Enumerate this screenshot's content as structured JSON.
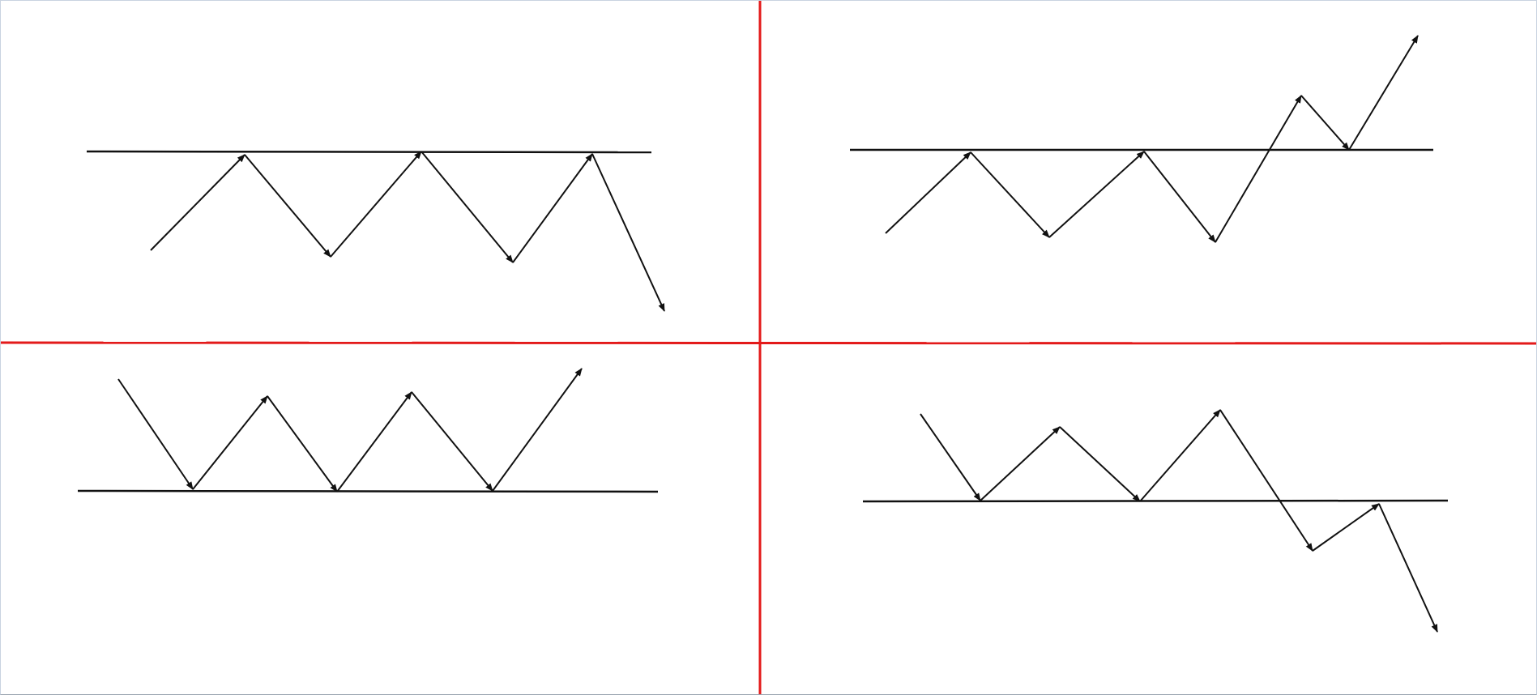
{
  "colors": {
    "background": "#ffffff",
    "divider": "#e31a1a",
    "stroke": "#111111"
  },
  "panels": [
    {
      "name": "panel-top-left",
      "pattern": "triple-top",
      "breakout": "downward"
    },
    {
      "name": "panel-top-right",
      "pattern": "triple-top",
      "breakout": "upward"
    },
    {
      "name": "panel-bottom-left",
      "pattern": "triple-bottom",
      "breakout": "upward"
    },
    {
      "name": "panel-bottom-right",
      "pattern": "triple-bottom",
      "breakout": "downward"
    }
  ]
}
